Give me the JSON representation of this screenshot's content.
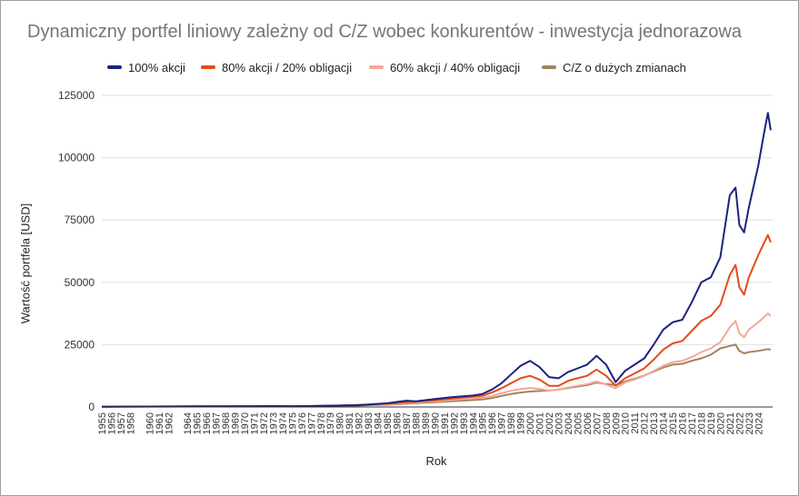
{
  "chart_data": {
    "type": "line",
    "title": "Dynamiczny portfel liniowy zależny od C/Z wobec konkurentów - inwestycja jednorazowa",
    "xlabel": "Rok",
    "ylabel": "Wartość portfela [USD]",
    "xlim": [
      1955,
      2025.5
    ],
    "ylim": [
      0,
      125000
    ],
    "yticks": [
      0,
      25000,
      50000,
      75000,
      100000,
      125000
    ],
    "xticks": [
      1955,
      1956,
      1957,
      1958,
      1960,
      1961,
      1962,
      1964,
      1965,
      1966,
      1967,
      1968,
      1969,
      1970,
      1971,
      1972,
      1973,
      1974,
      1975,
      1976,
      1977,
      1978,
      1979,
      1980,
      1981,
      1982,
      1983,
      1984,
      1985,
      1986,
      1987,
      1988,
      1989,
      1990,
      1991,
      1992,
      1993,
      1994,
      1995,
      1996,
      1997,
      1998,
      1999,
      2000,
      2001,
      2002,
      2003,
      2004,
      2005,
      2006,
      2007,
      2008,
      2009,
      2010,
      2011,
      2012,
      2013,
      2014,
      2015,
      2016,
      2017,
      2018,
      2019,
      2020,
      2021,
      2022,
      2023,
      2024
    ],
    "xtick_labels": [
      "1955",
      "1956",
      "1957",
      "1958",
      "1960",
      "1961",
      "1962",
      "1964",
      "1965",
      "1966",
      "1967",
      "1968",
      "1969",
      "1970",
      "1971",
      "1972",
      "1973",
      "1974",
      "1975",
      "1976",
      "1977",
      "1978",
      "1979",
      "1980",
      "1981",
      "1982",
      "1983",
      "1984",
      "1985",
      "1986",
      "1987",
      "1988",
      "1989",
      "1990",
      "1991",
      "1992",
      "1993",
      "1994",
      "1995",
      "1996",
      "1997",
      "1998",
      "1999",
      "2000",
      "2001",
      "2002",
      "2003",
      "2004",
      "2005",
      "2006",
      "2007",
      "2008",
      "2009",
      "2010",
      "2011",
      "2012",
      "2013",
      "2014",
      "2015",
      "2016",
      "2017",
      "2018",
      "2019",
      "2020",
      "2021",
      "2022",
      "2023",
      "2024"
    ],
    "legend_position": "top",
    "grid": "horizontal",
    "series": [
      {
        "name": "100% akcji",
        "color": "#1a237e",
        "points": [
          [
            1955,
            100
          ],
          [
            1960,
            180
          ],
          [
            1965,
            250
          ],
          [
            1970,
            300
          ],
          [
            1973,
            380
          ],
          [
            1975,
            300
          ],
          [
            1980,
            600
          ],
          [
            1982,
            700
          ],
          [
            1985,
            1500
          ],
          [
            1987,
            2500
          ],
          [
            1988,
            2300
          ],
          [
            1990,
            3200
          ],
          [
            1992,
            4000
          ],
          [
            1994,
            4600
          ],
          [
            1995,
            5200
          ],
          [
            1996,
            7000
          ],
          [
            1997,
            9500
          ],
          [
            1998,
            13000
          ],
          [
            1999,
            16500
          ],
          [
            2000,
            18500
          ],
          [
            2001,
            16000
          ],
          [
            2002,
            12000
          ],
          [
            2003,
            11500
          ],
          [
            2004,
            14000
          ],
          [
            2005,
            15500
          ],
          [
            2006,
            17000
          ],
          [
            2007,
            20500
          ],
          [
            2008,
            17000
          ],
          [
            2009,
            10000
          ],
          [
            2010,
            14500
          ],
          [
            2011,
            17000
          ],
          [
            2012,
            19500
          ],
          [
            2013,
            25000
          ],
          [
            2014,
            31000
          ],
          [
            2015,
            34000
          ],
          [
            2016,
            35000
          ],
          [
            2017,
            42000
          ],
          [
            2018,
            50000
          ],
          [
            2019,
            52000
          ],
          [
            2020,
            60000
          ],
          [
            2021,
            85000
          ],
          [
            2021.6,
            88000
          ],
          [
            2022,
            73000
          ],
          [
            2022.5,
            70000
          ],
          [
            2023,
            80000
          ],
          [
            2024,
            97000
          ],
          [
            2024.6,
            110000
          ],
          [
            2025,
            118000
          ],
          [
            2025.3,
            111000
          ]
        ]
      },
      {
        "name": "80% akcji / 20% obligacji",
        "color": "#e64a19",
        "points": [
          [
            1955,
            100
          ],
          [
            1960,
            170
          ],
          [
            1965,
            230
          ],
          [
            1970,
            280
          ],
          [
            1975,
            300
          ],
          [
            1980,
            550
          ],
          [
            1985,
            1300
          ],
          [
            1990,
            2700
          ],
          [
            1993,
            3800
          ],
          [
            1995,
            4500
          ],
          [
            1996,
            5800
          ],
          [
            1997,
            7500
          ],
          [
            1998,
            9500
          ],
          [
            1999,
            11500
          ],
          [
            2000,
            12500
          ],
          [
            2001,
            11000
          ],
          [
            2002,
            8500
          ],
          [
            2003,
            8500
          ],
          [
            2004,
            10500
          ],
          [
            2005,
            11500
          ],
          [
            2006,
            12500
          ],
          [
            2007,
            15000
          ],
          [
            2008,
            12500
          ],
          [
            2009,
            8500
          ],
          [
            2010,
            11500
          ],
          [
            2011,
            13500
          ],
          [
            2012,
            15500
          ],
          [
            2013,
            19000
          ],
          [
            2014,
            23000
          ],
          [
            2015,
            25500
          ],
          [
            2016,
            26500
          ],
          [
            2017,
            30500
          ],
          [
            2018,
            34500
          ],
          [
            2019,
            36500
          ],
          [
            2020,
            41000
          ],
          [
            2021,
            53000
          ],
          [
            2021.6,
            57000
          ],
          [
            2022,
            48000
          ],
          [
            2022.5,
            45000
          ],
          [
            2023,
            52000
          ],
          [
            2024,
            61000
          ],
          [
            2025,
            69000
          ],
          [
            2025.3,
            66000
          ]
        ]
      },
      {
        "name": "60% akcji / 40% obligacji",
        "color": "#f4a79a",
        "points": [
          [
            1955,
            100
          ],
          [
            1960,
            160
          ],
          [
            1965,
            210
          ],
          [
            1970,
            260
          ],
          [
            1975,
            280
          ],
          [
            1980,
            480
          ],
          [
            1985,
            1100
          ],
          [
            1990,
            2300
          ],
          [
            1995,
            3700
          ],
          [
            1996,
            4500
          ],
          [
            1997,
            5500
          ],
          [
            1998,
            6500
          ],
          [
            1999,
            7200
          ],
          [
            2000,
            7600
          ],
          [
            2001,
            7200
          ],
          [
            2002,
            6600
          ],
          [
            2003,
            7000
          ],
          [
            2004,
            7800
          ],
          [
            2005,
            8500
          ],
          [
            2006,
            9200
          ],
          [
            2007,
            10200
          ],
          [
            2008,
            9000
          ],
          [
            2009,
            7500
          ],
          [
            2010,
            9800
          ],
          [
            2011,
            11000
          ],
          [
            2012,
            12500
          ],
          [
            2013,
            14500
          ],
          [
            2014,
            16500
          ],
          [
            2015,
            18000
          ],
          [
            2016,
            18500
          ],
          [
            2017,
            20000
          ],
          [
            2018,
            22000
          ],
          [
            2019,
            23500
          ],
          [
            2020,
            26000
          ],
          [
            2021,
            32000
          ],
          [
            2021.6,
            34500
          ],
          [
            2022,
            29500
          ],
          [
            2022.5,
            28000
          ],
          [
            2023,
            31000
          ],
          [
            2024,
            34000
          ],
          [
            2025,
            37500
          ],
          [
            2025.3,
            36500
          ]
        ]
      },
      {
        "name": "C/Z o dużych zmianach",
        "color": "#a1845c",
        "points": [
          [
            1955,
            100
          ],
          [
            1960,
            150
          ],
          [
            1965,
            200
          ],
          [
            1970,
            240
          ],
          [
            1975,
            260
          ],
          [
            1980,
            420
          ],
          [
            1985,
            900
          ],
          [
            1990,
            1900
          ],
          [
            1995,
            3000
          ],
          [
            1996,
            3600
          ],
          [
            1997,
            4400
          ],
          [
            1998,
            5200
          ],
          [
            1999,
            5800
          ],
          [
            2000,
            6200
          ],
          [
            2001,
            6400
          ],
          [
            2002,
            6600
          ],
          [
            2003,
            7000
          ],
          [
            2004,
            7600
          ],
          [
            2005,
            8200
          ],
          [
            2006,
            8800
          ],
          [
            2007,
            9800
          ],
          [
            2008,
            9200
          ],
          [
            2009,
            8800
          ],
          [
            2010,
            10200
          ],
          [
            2011,
            11300
          ],
          [
            2012,
            12600
          ],
          [
            2013,
            14200
          ],
          [
            2014,
            15800
          ],
          [
            2015,
            17000
          ],
          [
            2016,
            17300
          ],
          [
            2017,
            18500
          ],
          [
            2018,
            19500
          ],
          [
            2019,
            21000
          ],
          [
            2020,
            23500
          ],
          [
            2021,
            24500
          ],
          [
            2021.6,
            25000
          ],
          [
            2022,
            22500
          ],
          [
            2022.5,
            21500
          ],
          [
            2023,
            22000
          ],
          [
            2024,
            22500
          ],
          [
            2025,
            23200
          ],
          [
            2025.3,
            23000
          ]
        ]
      }
    ]
  }
}
